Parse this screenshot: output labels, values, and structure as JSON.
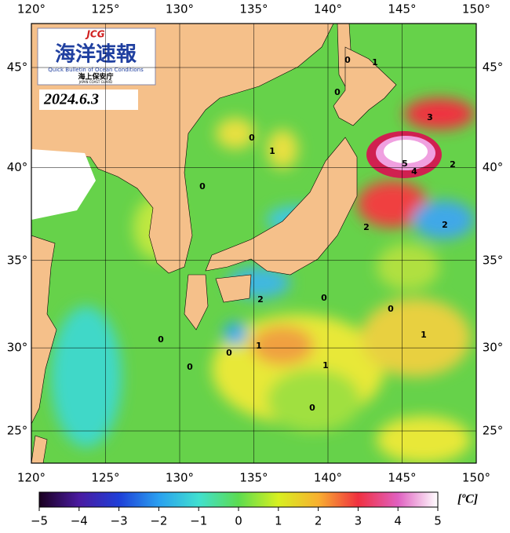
{
  "header": {
    "logo": {
      "badge": "JCG",
      "title": "海洋速報",
      "subtitle": "Quick Bulletin of Ocean Conditions",
      "agency": "海上保安庁",
      "agency_en": "JAPAN COAST GUARD"
    },
    "date": "2024.6.3"
  },
  "map": {
    "lon_ticks": [
      {
        "value": 120,
        "label": "120°"
      },
      {
        "value": 125,
        "label": "125°"
      },
      {
        "value": 130,
        "label": "130°"
      },
      {
        "value": 135,
        "label": "135°"
      },
      {
        "value": 140,
        "label": "140°"
      },
      {
        "value": 145,
        "label": "145°"
      },
      {
        "value": 150,
        "label": "150°"
      }
    ],
    "lat_ticks": [
      {
        "value": 45,
        "label": "45°"
      },
      {
        "value": 40,
        "label": "40°"
      },
      {
        "value": 35,
        "label": "35°"
      },
      {
        "value": 30,
        "label": "30°"
      },
      {
        "value": 25,
        "label": "25°"
      }
    ],
    "contour_labels": [
      "0",
      "1",
      "0",
      "1",
      "0",
      "3",
      "5",
      "4",
      "2",
      "2",
      "2",
      "0",
      "2",
      "0",
      "0",
      "1",
      "0",
      "1",
      "0",
      "0",
      "0",
      "1"
    ]
  },
  "colorbar": {
    "ticks": [
      {
        "value": -5,
        "label": "−5"
      },
      {
        "value": -4,
        "label": "−4"
      },
      {
        "value": -3,
        "label": "−3"
      },
      {
        "value": -2,
        "label": "−2"
      },
      {
        "value": -1,
        "label": "−1"
      },
      0,
      1,
      2,
      3,
      4,
      5
    ],
    "unit": "[ºC]"
  }
}
